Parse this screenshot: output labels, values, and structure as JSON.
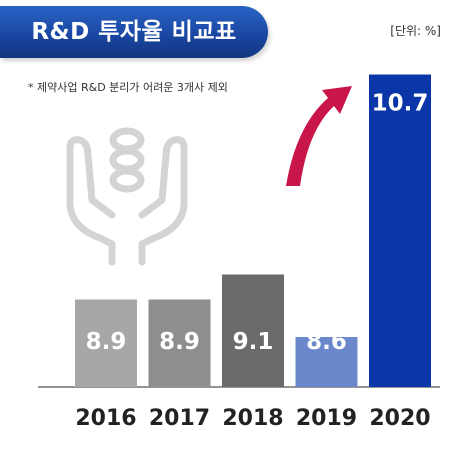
{
  "header": {
    "title": "R&D 투자율 비교표",
    "unit": "[단위: %]"
  },
  "note": "* 제약사업 R&D 분리가 어려운 3개사 제외",
  "icons": {
    "background_icon": "hands-holding-coins-icon",
    "trend_arrow": "curved-arrow-up-icon"
  },
  "colors": {
    "title_banner": "#1f4fae",
    "bars": [
      "#a8a7a6",
      "#8f8e8d",
      "#6b6b6d",
      "#6c88cc",
      "#0a36a8"
    ],
    "arrow": "#c8164a"
  },
  "chart_data": {
    "type": "bar",
    "title": "R&D 투자율 비교표",
    "categories": [
      "2016",
      "2017",
      "2018",
      "2019",
      "2020"
    ],
    "values": [
      8.9,
      8.9,
      9.1,
      8.6,
      10.7
    ],
    "data_labels": [
      "8.9",
      "8.9",
      "9.1",
      "8.6",
      "10.7"
    ],
    "unit": "%",
    "grid": false,
    "legend": "none"
  }
}
